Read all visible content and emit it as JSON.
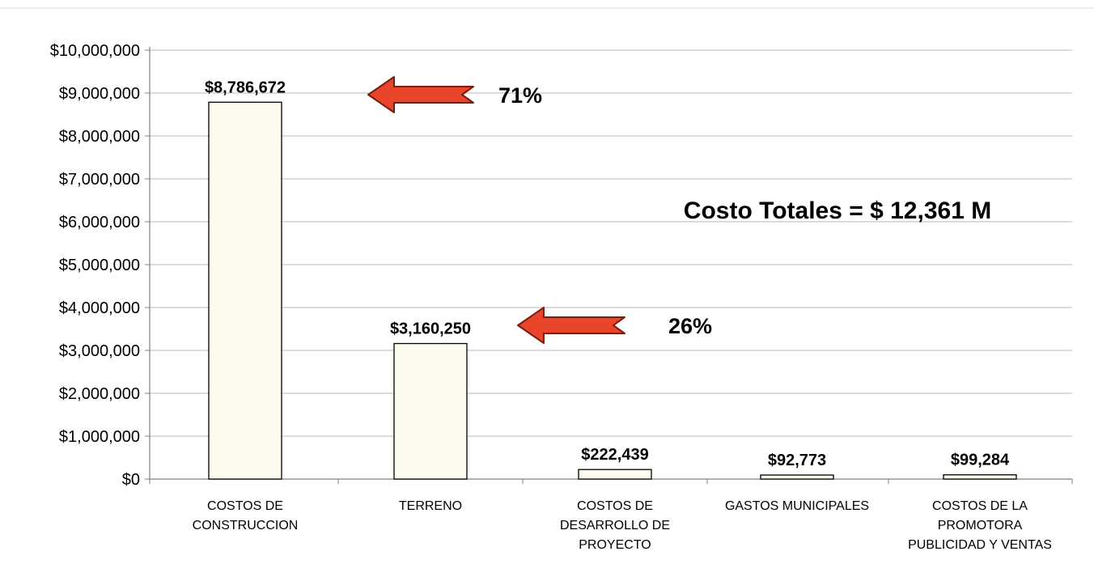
{
  "colors": {
    "bar_fill": "#fdfbee",
    "bar_stroke": "#000000",
    "gridline": "#b8b8b8",
    "axis": "#808080",
    "arrow_fill": "#e8452a",
    "arrow_stroke": "#7a1d0e"
  },
  "annotations": {
    "total": "Costo Totales = $ 12,361 M",
    "arrows": [
      {
        "category_index": 0,
        "label": "71%",
        "icon": "left-arrow-icon"
      },
      {
        "category_index": 1,
        "label": "26%",
        "icon": "left-arrow-icon"
      }
    ]
  },
  "chart_data": {
    "type": "bar",
    "title": "",
    "xlabel": "",
    "ylabel": "",
    "ylim": [
      0,
      10000000
    ],
    "grid": true,
    "legend": "none",
    "yticks": [
      "$0",
      "$1,000,000",
      "$2,000,000",
      "$3,000,000",
      "$4,000,000",
      "$5,000,000",
      "$6,000,000",
      "$7,000,000",
      "$8,000,000",
      "$9,000,000",
      "$10,000,000"
    ],
    "categories": [
      [
        "COSTOS DE",
        "CONSTRUCCION"
      ],
      [
        "TERRENO"
      ],
      [
        "COSTOS DE",
        "DESARROLLO DE",
        "PROYECTO"
      ],
      [
        "GASTOS MUNICIPALES"
      ],
      [
        "COSTOS DE LA",
        "PROMOTORA",
        "PUBLICIDAD Y VENTAS"
      ]
    ],
    "values": [
      8786672,
      3160250,
      222439,
      92773,
      99284
    ],
    "data_labels": [
      "$8,786,672",
      "$3,160,250",
      "$222,439",
      "$92,773",
      "$99,284"
    ]
  }
}
